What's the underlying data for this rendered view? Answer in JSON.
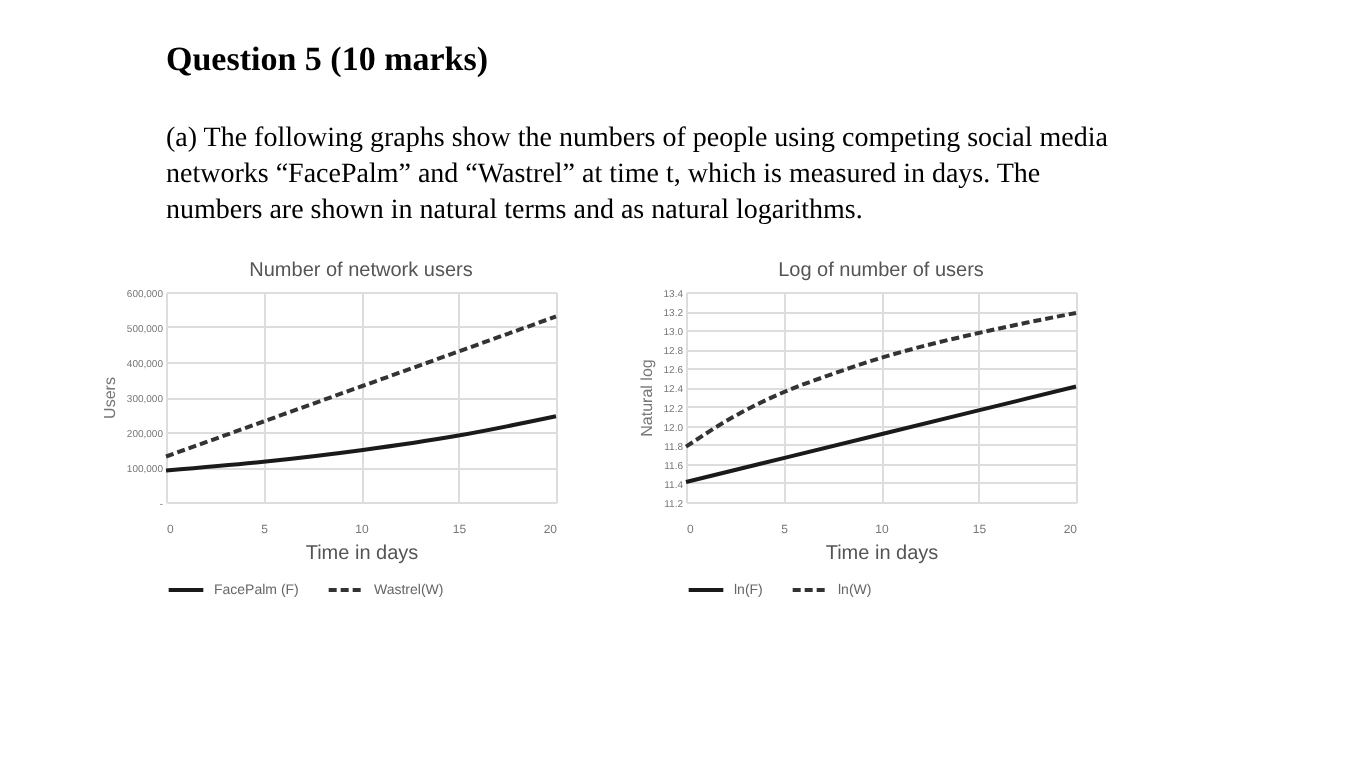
{
  "chart_data": [
    {
      "type": "line",
      "title": "Number of network users",
      "xlabel": "Time in days",
      "ylabel": "Users",
      "annotations": [
        "Question 5 (10 marks)",
        "(a) The following graphs show the numbers of people using competing social media networks “FacePalm” and “Wastrel” at time t, which is measured in days. The numbers are shown in natural terms and as natural logarithms."
      ],
      "x": [
        0,
        5,
        10,
        15,
        20
      ],
      "series": [
        {
          "name": "FacePalm (F)",
          "color": "#1a1a1a",
          "line_style": "solid",
          "values": [
            90000,
            115000,
            148000,
            190000,
            245000
          ]
        },
        {
          "name": "Wastrel(W)",
          "color": "#333333",
          "line_style": "dashed",
          "values": [
            130000,
            230000,
            330000,
            430000,
            530000
          ]
        }
      ],
      "xlim": [
        0,
        20
      ],
      "xticks": [
        0,
        5,
        10,
        15,
        20
      ],
      "ylim": [
        0,
        600000
      ],
      "yticks": [
        {
          "value": 0,
          "label": "-"
        },
        {
          "value": 100000,
          "label": "100,000"
        },
        {
          "value": 200000,
          "label": "200,000"
        },
        {
          "value": 300000,
          "label": "300,000"
        },
        {
          "value": 400000,
          "label": "400,000"
        },
        {
          "value": 500000,
          "label": "500,000"
        },
        {
          "value": 600000,
          "label": "600,000"
        }
      ],
      "grid": true,
      "legend": "bottom"
    },
    {
      "type": "line",
      "title": "Log of number of users",
      "xlabel": "Time in days",
      "ylabel": "Natural log",
      "x": [
        0,
        5,
        10,
        15,
        20
      ],
      "series": [
        {
          "name": "ln(F)",
          "color": "#1a1a1a",
          "line_style": "solid",
          "values": [
            11.41,
            11.66,
            11.91,
            12.16,
            12.41
          ]
        },
        {
          "name": "ln(W)",
          "color": "#333333",
          "line_style": "dashed",
          "x": [
            0,
            2.5,
            5,
            7.5,
            10,
            12.5,
            15,
            17.5,
            20
          ],
          "values": [
            11.78,
            12.1,
            12.35,
            12.54,
            12.71,
            12.85,
            12.97,
            13.08,
            13.18
          ]
        }
      ],
      "xlim": [
        0,
        20
      ],
      "xticks": [
        0,
        5,
        10,
        15,
        20
      ],
      "ylim": [
        11.2,
        13.4
      ],
      "yticks": [
        11.2,
        11.4,
        11.6,
        11.8,
        {
          "value": 12.0,
          "label": "12.0"
        },
        12.2,
        12.4,
        12.6,
        12.8,
        {
          "value": 13.0,
          "label": "13.0"
        },
        13.2,
        13.4
      ],
      "grid": true,
      "legend": "bottom"
    }
  ]
}
